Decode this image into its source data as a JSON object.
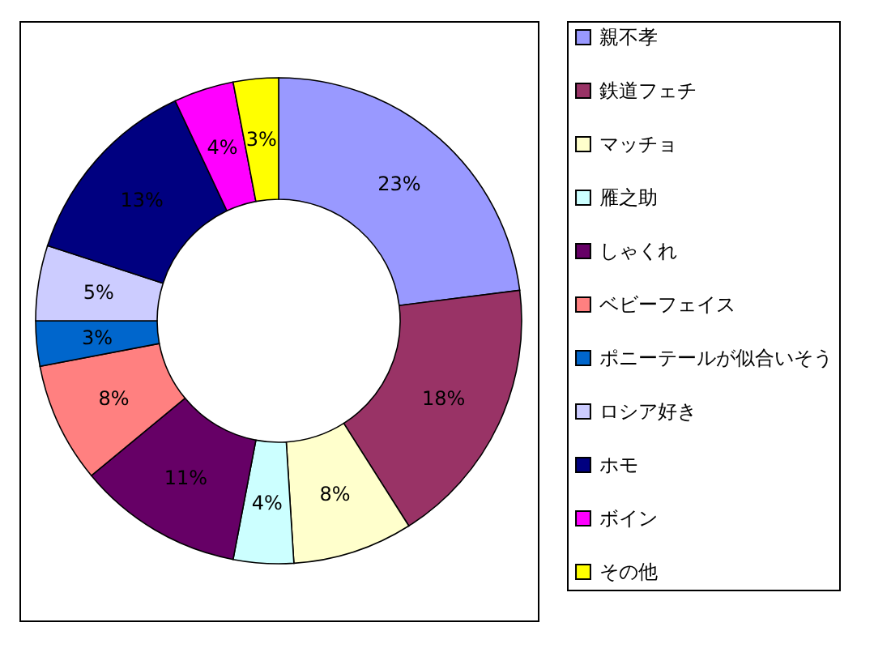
{
  "chart_data": {
    "type": "donut",
    "categories": [
      "親不孝",
      "鉄道フェチ",
      "マッチョ",
      "雁之助",
      "しゃくれ",
      "ベビーフェイス",
      "ポニーテールが似合いそう",
      "ロシア好き",
      "ホモ",
      "ボイン",
      "その他"
    ],
    "values": [
      23,
      18,
      8,
      4,
      11,
      8,
      3,
      5,
      13,
      4,
      3
    ],
    "value_labels": [
      "23%",
      "18%",
      "8%",
      "4%",
      "11%",
      "8%",
      "3%",
      "5%",
      "13%",
      "4%",
      "3%"
    ],
    "colors": [
      "#9999ff",
      "#993366",
      "#ffffcc",
      "#ccffff",
      "#660066",
      "#ff8080",
      "#0066cc",
      "#ccccff",
      "#000080",
      "#ff00ff",
      "#ffff00"
    ],
    "legend": "right"
  }
}
